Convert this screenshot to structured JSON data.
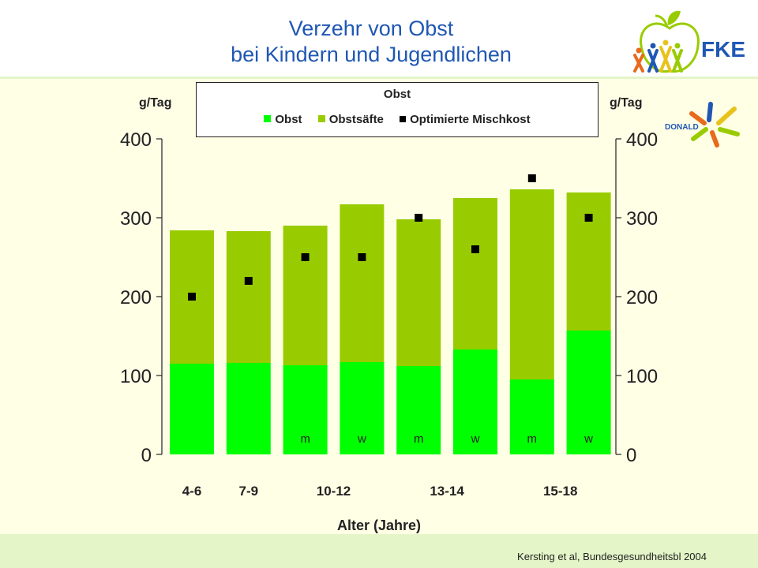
{
  "header": {
    "title_line1": "Verzehr von Obst",
    "title_line2": "bei Kindern und Jugendlichen",
    "logo_text": "FKE",
    "donald_text": "DONALD"
  },
  "footer": {
    "citation": "Kersting et al, Bundesgesundheitsbl 2004"
  },
  "colors": {
    "obst": "#00ff00",
    "obstsaefte": "#99cc00",
    "mischkost": "#000000",
    "title": "#1f57b4"
  },
  "chart_data": {
    "type": "bar",
    "stacked": true,
    "legend_title": "Obst",
    "legend_position": "top",
    "ylabel_left": "g/Tag",
    "ylabel_right": "g/Tag",
    "xlabel": "Alter (Jahre)",
    "ylim": [
      0,
      400
    ],
    "yticks": [
      0,
      100,
      200,
      300,
      400
    ],
    "grid": false,
    "age_groups": [
      {
        "label": "4-6",
        "bars": 1
      },
      {
        "label": "7-9",
        "bars": 1
      },
      {
        "label": "10-12",
        "bars": 2
      },
      {
        "label": "13-14",
        "bars": 2
      },
      {
        "label": "15-18",
        "bars": 2
      }
    ],
    "bar_labels": [
      "",
      "",
      "m",
      "w",
      "m",
      "w",
      "m",
      "w"
    ],
    "series": [
      {
        "name": "Obst",
        "values": [
          115,
          116,
          113,
          117,
          112,
          133,
          95,
          157
        ]
      },
      {
        "name": "Obstsäfte",
        "values": [
          169,
          167,
          177,
          200,
          186,
          192,
          241,
          175
        ]
      }
    ],
    "markers": {
      "name": "Optimierte Mischkost",
      "values": [
        200,
        220,
        250,
        250,
        300,
        260,
        350,
        300
      ]
    }
  }
}
